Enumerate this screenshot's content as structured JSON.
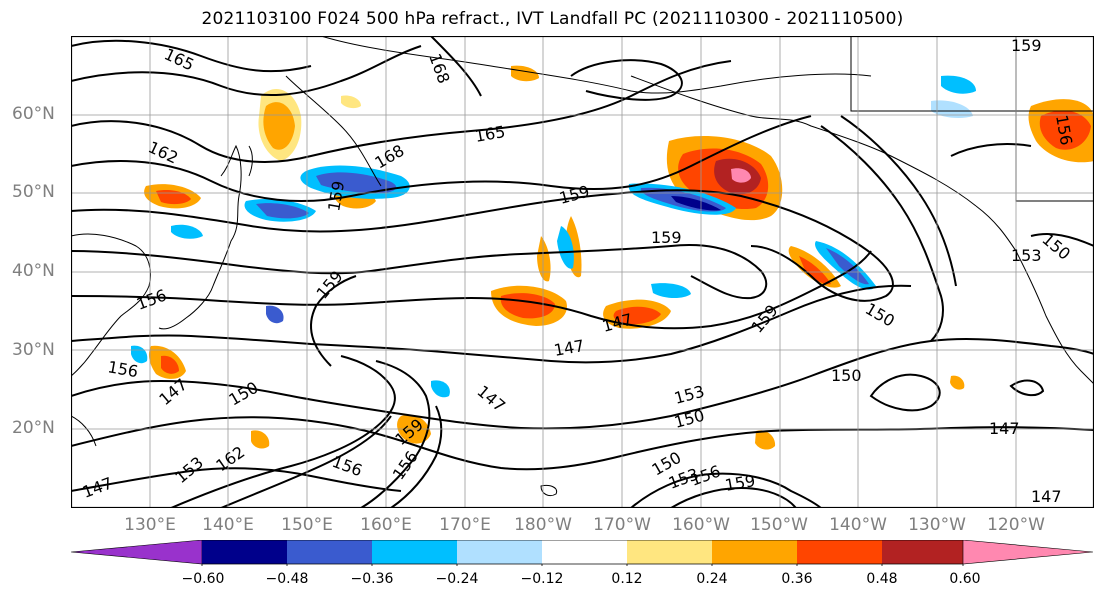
{
  "title": "2021103100 F024 500 hPa refract., IVT Landfall PC (2021110300 - 2021110500)",
  "lat_labels": [
    "60°N",
    "50°N",
    "40°N",
    "30°N",
    "20°N"
  ],
  "lon_labels": [
    "130°E",
    "140°E",
    "150°E",
    "160°E",
    "170°E",
    "180°W",
    "170°W",
    "160°W",
    "150°W",
    "140°W",
    "130°W",
    "120°W"
  ],
  "colorbar": {
    "colors": [
      "#9932cc",
      "#00008b",
      "#3a5bcf",
      "#00bfff",
      "#b0e0ff",
      "#ffffff",
      "#ffe680",
      "#ffa500",
      "#ff4500",
      "#b22222",
      "#ff88b0"
    ],
    "tick_labels": [
      "−0.60",
      "−0.48",
      "−0.36",
      "−0.24",
      "−0.12",
      "0.12",
      "0.24",
      "0.36",
      "0.48",
      "0.60"
    ]
  },
  "contour_labels": [
    "165",
    "168",
    "162",
    "165",
    "168",
    "159",
    "159",
    "159",
    "159",
    "156",
    "156",
    "147",
    "150",
    "147",
    "147",
    "147",
    "159",
    "150",
    "150",
    "153",
    "150",
    "147",
    "153",
    "162",
    "156",
    "156",
    "159",
    "150",
    "153",
    "156",
    "159",
    "147",
    "147",
    "156",
    "159",
    "153",
    "150"
  ]
}
